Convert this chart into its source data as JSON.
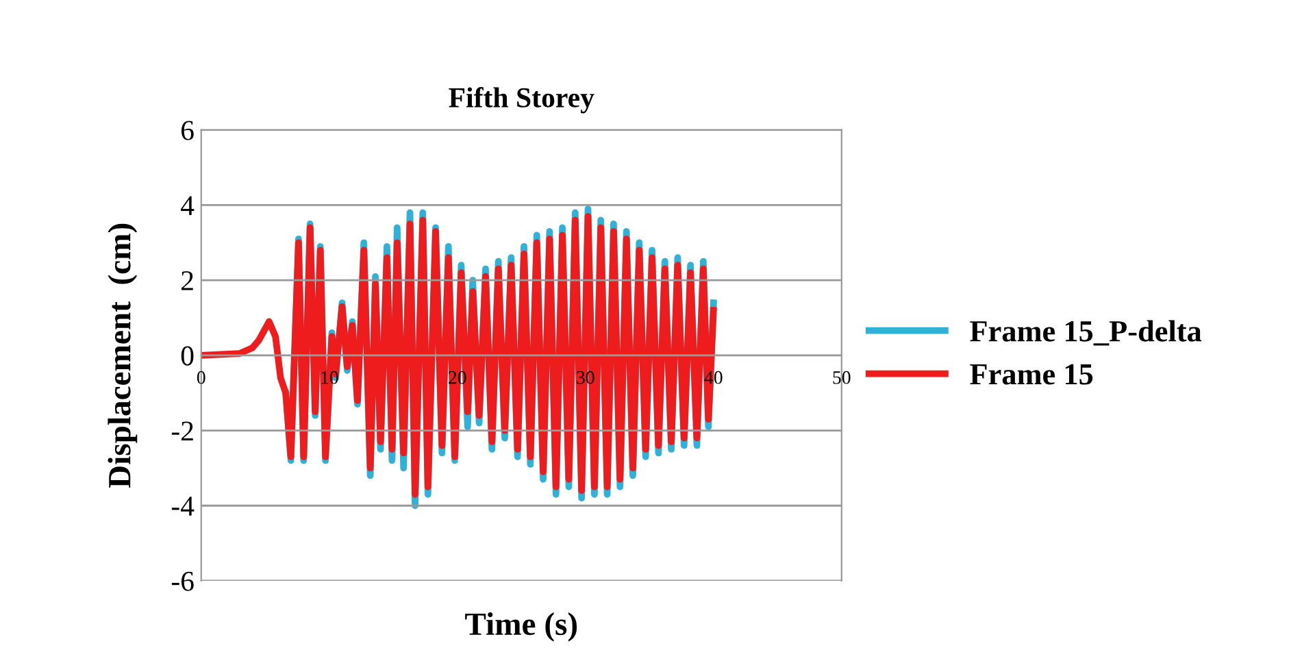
{
  "chart_data": {
    "type": "line",
    "title": "Fifth Storey",
    "xlabel": "Time (s)",
    "ylabel": "Displacement  (cm)",
    "xlim": [
      0,
      50
    ],
    "xticks": [
      0,
      10,
      20,
      30,
      40,
      50
    ],
    "ylim": [
      -6,
      6
    ],
    "yticks": [
      -6,
      -4,
      -2,
      0,
      2,
      4,
      6
    ],
    "grid": "y",
    "legend": "right",
    "line_style": "solid",
    "series": [
      {
        "name": "Frame 15_P-delta",
        "color": "#31b0d8",
        "x": [
          6.6,
          7.0,
          7.6,
          8.0,
          8.5,
          8.9,
          9.3,
          9.7,
          10.2,
          10.5,
          11.0,
          11.4,
          11.8,
          12.2,
          12.7,
          13.2,
          13.6,
          14.0,
          14.5,
          14.9,
          15.3,
          15.8,
          16.3,
          16.7,
          17.3,
          17.7,
          18.3,
          18.8,
          19.3,
          19.8,
          20.3,
          20.8,
          21.2,
          21.7,
          22.2,
          22.7,
          23.2,
          23.7,
          24.2,
          24.7,
          25.2,
          25.7,
          26.2,
          26.7,
          27.2,
          27.7,
          28.2,
          28.7,
          29.2,
          29.7,
          30.2,
          30.7,
          31.2,
          31.7,
          32.2,
          32.7,
          33.2,
          33.7,
          34.2,
          34.7,
          35.2,
          35.7,
          36.2,
          36.7,
          37.2,
          37.7,
          38.2,
          38.7,
          39.2,
          39.6,
          40.0
        ],
        "values": [
          -1.0,
          -2.8,
          3.1,
          -2.8,
          3.5,
          -1.6,
          2.9,
          -2.8,
          0.6,
          -0.6,
          1.4,
          -0.4,
          0.9,
          -1.3,
          3.0,
          -3.2,
          2.1,
          -2.5,
          2.9,
          -2.8,
          3.4,
          -3.0,
          3.8,
          -4.0,
          3.8,
          -3.7,
          3.4,
          -2.6,
          2.9,
          -2.8,
          2.4,
          -1.9,
          2.0,
          -1.8,
          2.3,
          -2.5,
          2.5,
          -2.2,
          2.6,
          -2.7,
          2.9,
          -2.9,
          3.2,
          -3.3,
          3.3,
          -3.7,
          3.4,
          -3.5,
          3.8,
          -3.8,
          3.9,
          -3.7,
          3.6,
          -3.7,
          3.5,
          -3.5,
          3.3,
          -3.2,
          3.0,
          -2.7,
          2.8,
          -2.6,
          2.5,
          -2.5,
          2.6,
          -2.4,
          2.4,
          -2.4,
          2.5,
          -1.9,
          1.4
        ]
      },
      {
        "name": "Frame 15",
        "color": "#ee1c1c",
        "x": [
          0,
          3,
          4,
          4.5,
          5.3,
          5.8,
          6.2,
          6.6,
          7.0,
          7.6,
          8.0,
          8.5,
          8.9,
          9.3,
          9.7,
          10.2,
          10.5,
          11.0,
          11.4,
          11.8,
          12.2,
          12.7,
          13.2,
          13.6,
          14.0,
          14.5,
          14.9,
          15.3,
          15.8,
          16.3,
          16.7,
          17.3,
          17.7,
          18.3,
          18.8,
          19.3,
          19.8,
          20.3,
          20.8,
          21.2,
          21.7,
          22.2,
          22.7,
          23.2,
          23.7,
          24.2,
          24.7,
          25.2,
          25.7,
          26.2,
          26.7,
          27.2,
          27.7,
          28.2,
          28.7,
          29.2,
          29.7,
          30.2,
          30.7,
          31.2,
          31.7,
          32.2,
          32.7,
          33.2,
          33.7,
          34.2,
          34.7,
          35.2,
          35.7,
          36.2,
          36.7,
          37.2,
          37.7,
          38.2,
          38.7,
          39.2,
          39.6,
          40.0
        ],
        "values": [
          0,
          0.05,
          0.2,
          0.4,
          0.9,
          0.5,
          -0.6,
          -1.0,
          -2.7,
          3.0,
          -2.7,
          3.4,
          -1.5,
          2.8,
          -2.7,
          0.5,
          -0.5,
          1.3,
          -0.3,
          0.8,
          -1.2,
          2.8,
          -3.0,
          1.9,
          -2.3,
          2.6,
          -2.5,
          3.0,
          -2.6,
          3.5,
          -3.7,
          3.6,
          -3.5,
          3.3,
          -2.4,
          2.6,
          -2.7,
          2.2,
          -1.5,
          1.7,
          -1.6,
          2.1,
          -2.3,
          2.3,
          -2.0,
          2.4,
          -2.5,
          2.7,
          -2.7,
          3.0,
          -3.1,
          3.1,
          -3.5,
          3.2,
          -3.3,
          3.6,
          -3.6,
          3.7,
          -3.5,
          3.4,
          -3.5,
          3.3,
          -3.3,
          3.1,
          -3.0,
          2.8,
          -2.5,
          2.6,
          -2.4,
          2.3,
          -2.3,
          2.4,
          -2.2,
          2.2,
          -2.2,
          2.3,
          -1.7,
          1.2
        ]
      }
    ]
  }
}
